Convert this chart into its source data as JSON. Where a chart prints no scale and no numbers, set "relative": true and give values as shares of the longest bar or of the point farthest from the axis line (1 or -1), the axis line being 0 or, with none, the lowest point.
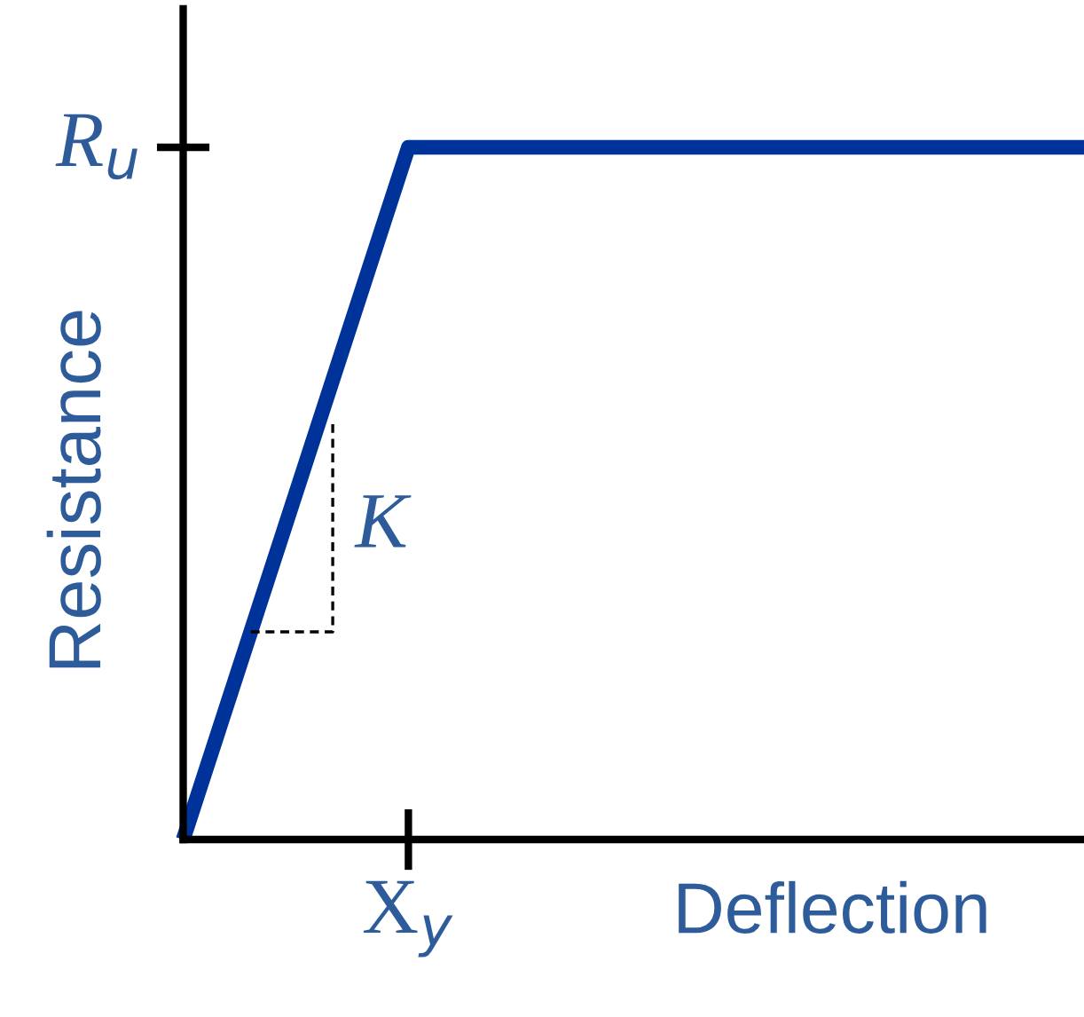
{
  "chart_data": {
    "type": "line",
    "relative": true,
    "xlabel": "Deflection",
    "ylabel": "Resistance",
    "categories": [
      null,
      null,
      null,
      null,
      null
    ],
    "series": [
      {
        "color": "#003399",
        "values": [
          0,
          1,
          1,
          1,
          1
        ]
      }
    ],
    "annotations": [
      "R$_{u}$",
      "X$_{y}$",
      "K"
    ],
    "line_style": "solid",
    "marker": "none",
    "legend": false
  }
}
